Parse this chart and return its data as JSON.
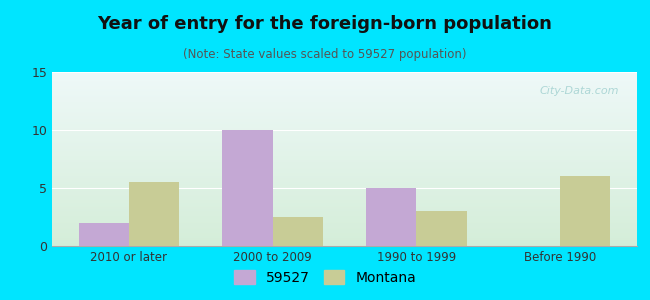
{
  "title": "Year of entry for the foreign-born population",
  "subtitle": "(Note: State values scaled to 59527 population)",
  "categories": [
    "2010 or later",
    "2000 to 2009",
    "1990 to 1999",
    "Before 1990"
  ],
  "series_59527": [
    2,
    10,
    5,
    0
  ],
  "series_montana": [
    5.5,
    2.5,
    3,
    6
  ],
  "bar_color_59527": "#c4a8d4",
  "bar_color_montana": "#c8cc96",
  "ylim": [
    0,
    15
  ],
  "yticks": [
    0,
    5,
    10,
    15
  ],
  "background_outer": "#00e5ff",
  "legend_label_1": "59527",
  "legend_label_2": "Montana",
  "bar_width": 0.35,
  "watermark": "City-Data.com"
}
